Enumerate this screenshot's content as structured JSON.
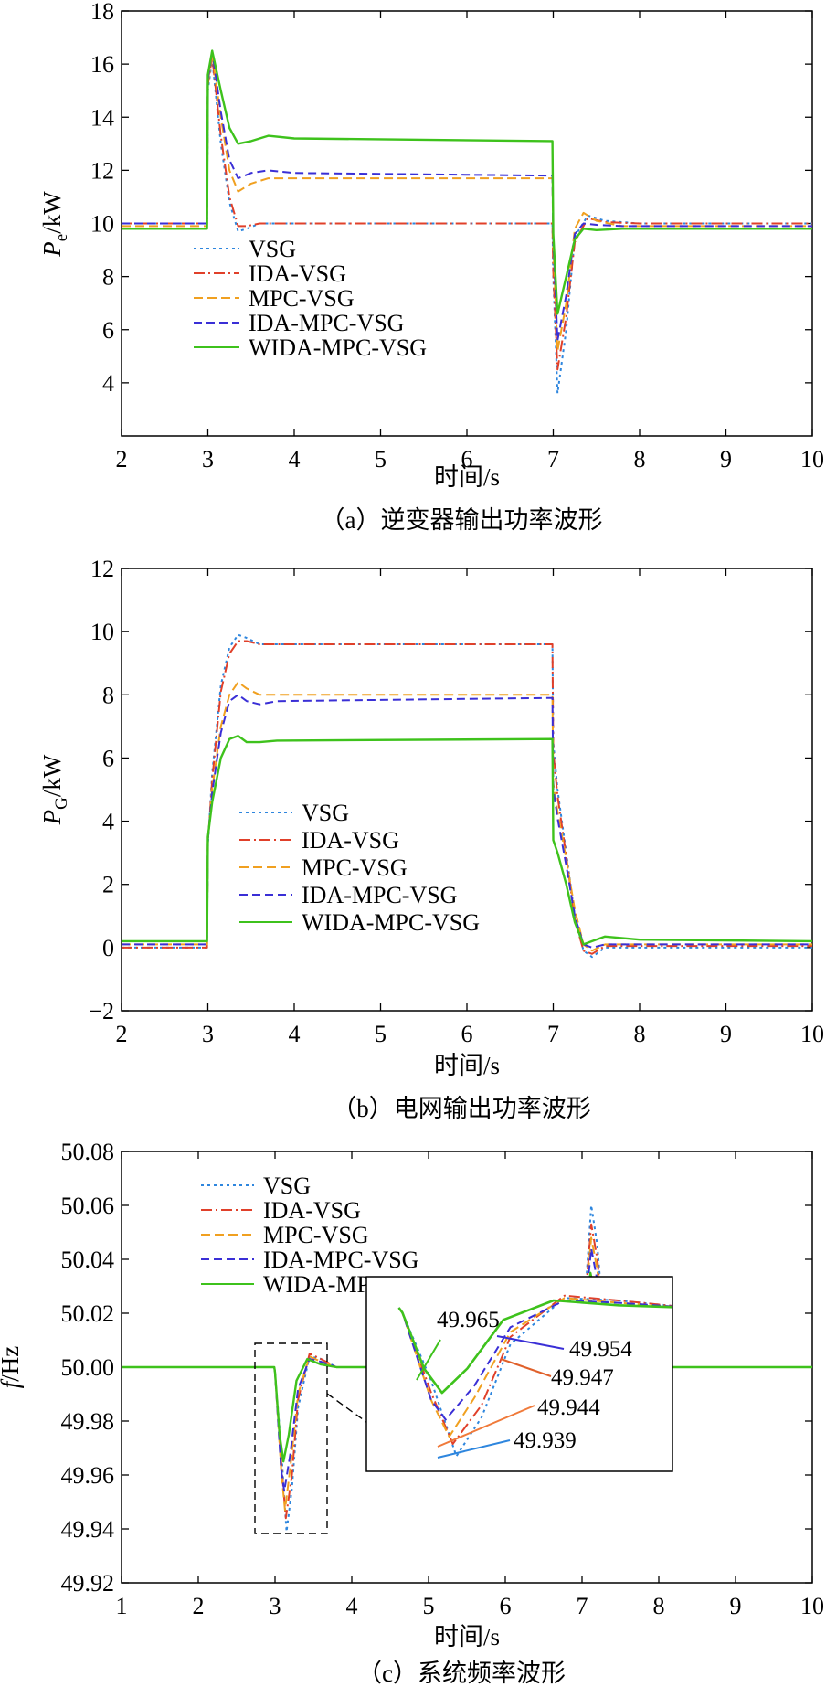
{
  "figure": {
    "time_unit_label": "时间/s",
    "series_colors": {
      "VSG": "#2e86de",
      "IDA-VSG": "#e0402a",
      "MPC-VSG": "#f0a020",
      "IDA-MPC-VSG": "#3a2fd6",
      "WIDA-MPC-VSG": "#3ec21c"
    }
  },
  "chart_data": [
    {
      "id": "a",
      "type": "line",
      "caption": "（a）逆变器输出功率波形",
      "xlabel": "时间/s",
      "ylabel_main": "P",
      "ylabel_sub": "e",
      "ylabel_unit": "/kW",
      "xlim": [
        2,
        10
      ],
      "ylim": [
        2,
        18
      ],
      "xticks": [
        2,
        3,
        4,
        5,
        6,
        7,
        8,
        9,
        10
      ],
      "yticks": [
        4,
        6,
        8,
        10,
        12,
        14,
        16,
        18
      ],
      "ytick_labels": [
        "4",
        "6",
        "8",
        "10",
        "12",
        "14",
        "16",
        "18"
      ],
      "xtick_labels": [
        "2",
        "3",
        "4",
        "5",
        "6",
        "7",
        "8",
        "9",
        "10"
      ],
      "legend": [
        "VSG",
        "IDA-VSG",
        "MPC-VSG",
        "IDA-MPC-VSG",
        "WIDA-MPC-VSG"
      ],
      "series": [
        {
          "name": "VSG",
          "x": [
            2,
            2.99,
            3.0,
            3.05,
            3.15,
            3.25,
            3.35,
            3.45,
            3.6,
            3.8,
            6.99,
            7.0,
            7.05,
            7.15,
            7.25,
            7.4,
            7.6,
            8.0,
            10
          ],
          "y": [
            10.0,
            10.0,
            15.0,
            16.2,
            13.0,
            10.8,
            9.7,
            9.8,
            10.0,
            10.0,
            10.0,
            8.0,
            3.6,
            6.0,
            9.5,
            10.3,
            10.1,
            10.0,
            10.0
          ]
        },
        {
          "name": "IDA-VSG",
          "x": [
            2,
            2.99,
            3.0,
            3.05,
            3.15,
            3.25,
            3.35,
            3.45,
            3.6,
            3.8,
            6.99,
            7.0,
            7.05,
            7.15,
            7.25,
            7.4,
            7.6,
            8.0,
            10
          ],
          "y": [
            10.0,
            10.0,
            15.2,
            16.3,
            13.3,
            11.0,
            9.9,
            9.9,
            10.0,
            10.0,
            10.0,
            8.2,
            4.5,
            6.5,
            9.3,
            10.2,
            10.05,
            10.0,
            10.0
          ]
        },
        {
          "name": "MPC-VSG",
          "x": [
            2,
            2.99,
            3.0,
            3.05,
            3.15,
            3.25,
            3.35,
            3.5,
            3.7,
            4.0,
            6.99,
            7.0,
            7.05,
            7.15,
            7.25,
            7.35,
            7.5,
            7.8,
            10
          ],
          "y": [
            9.9,
            9.9,
            15.3,
            16.4,
            14.0,
            12.0,
            11.2,
            11.5,
            11.7,
            11.7,
            11.7,
            9.2,
            5.2,
            7.0,
            9.8,
            10.4,
            10.1,
            9.9,
            9.9
          ]
        },
        {
          "name": "IDA-MPC-VSG",
          "x": [
            2,
            2.99,
            3.0,
            3.05,
            3.15,
            3.25,
            3.35,
            3.5,
            3.7,
            4.0,
            6.99,
            7.0,
            7.05,
            7.15,
            7.25,
            7.35,
            7.5,
            7.8,
            10
          ],
          "y": [
            10.0,
            10.0,
            15.4,
            16.5,
            14.2,
            12.4,
            11.7,
            11.9,
            12.0,
            11.9,
            11.8,
            9.4,
            5.6,
            7.3,
            9.6,
            10.0,
            9.95,
            9.9,
            9.9
          ]
        },
        {
          "name": "WIDA-MPC-VSG",
          "x": [
            2,
            2.99,
            3.0,
            3.05,
            3.15,
            3.25,
            3.35,
            3.5,
            3.7,
            4.0,
            6.99,
            7.0,
            7.05,
            7.15,
            7.25,
            7.35,
            7.5,
            7.8,
            10
          ],
          "y": [
            9.8,
            9.8,
            15.6,
            16.5,
            15.0,
            13.6,
            13.0,
            13.1,
            13.3,
            13.2,
            13.1,
            9.6,
            6.6,
            8.0,
            9.4,
            9.8,
            9.75,
            9.8,
            9.8
          ]
        }
      ]
    },
    {
      "id": "b",
      "type": "line",
      "caption": "（b）电网输出功率波形",
      "xlabel": "时间/s",
      "ylabel_main": "P",
      "ylabel_sub": "G",
      "ylabel_unit": "/kW",
      "xlim": [
        2,
        10
      ],
      "ylim": [
        -2,
        12
      ],
      "xticks": [
        2,
        3,
        4,
        5,
        6,
        7,
        8,
        9,
        10
      ],
      "yticks": [
        -2,
        0,
        2,
        4,
        6,
        8,
        10,
        12
      ],
      "ytick_labels": [
        "−2",
        "0",
        "2",
        "4",
        "6",
        "8",
        "10",
        "12"
      ],
      "xtick_labels": [
        "2",
        "3",
        "4",
        "5",
        "6",
        "7",
        "8",
        "9",
        "10"
      ],
      "legend": [
        "VSG",
        "IDA-VSG",
        "MPC-VSG",
        "IDA-MPC-VSG",
        "WIDA-MPC-VSG"
      ],
      "series": [
        {
          "name": "VSG",
          "x": [
            2,
            2.99,
            3.0,
            3.05,
            3.15,
            3.25,
            3.35,
            3.45,
            3.6,
            3.8,
            6.99,
            7.0,
            7.05,
            7.15,
            7.25,
            7.35,
            7.45,
            7.6,
            8.0,
            10
          ],
          "y": [
            0.0,
            0.0,
            3.2,
            5.5,
            8.3,
            9.5,
            9.9,
            9.8,
            9.6,
            9.6,
            9.6,
            6.5,
            5.0,
            3.0,
            1.0,
            -0.1,
            -0.3,
            0.0,
            0.0,
            0.0
          ]
        },
        {
          "name": "IDA-VSG",
          "x": [
            2,
            2.99,
            3.0,
            3.05,
            3.15,
            3.25,
            3.35,
            3.45,
            3.6,
            3.8,
            6.99,
            7.0,
            7.05,
            7.15,
            7.25,
            7.35,
            7.45,
            7.6,
            8.0,
            10
          ],
          "y": [
            0.0,
            0.0,
            3.3,
            5.3,
            8.1,
            9.3,
            9.7,
            9.7,
            9.6,
            9.6,
            9.6,
            6.2,
            4.8,
            2.9,
            0.9,
            -0.1,
            -0.2,
            0.05,
            0.05,
            0.05
          ]
        },
        {
          "name": "MPC-VSG",
          "x": [
            2,
            2.99,
            3.0,
            3.05,
            3.15,
            3.25,
            3.35,
            3.45,
            3.6,
            3.8,
            6.99,
            7.0,
            7.05,
            7.15,
            7.25,
            7.35,
            7.45,
            7.6,
            8.0,
            10
          ],
          "y": [
            0.1,
            0.1,
            3.4,
            5.0,
            7.0,
            8.0,
            8.4,
            8.2,
            8.0,
            8.0,
            8.0,
            5.2,
            4.3,
            2.8,
            1.2,
            0.1,
            -0.1,
            0.1,
            0.1,
            0.1
          ]
        },
        {
          "name": "IDA-MPC-VSG",
          "x": [
            2,
            2.99,
            3.0,
            3.05,
            3.15,
            3.25,
            3.35,
            3.45,
            3.6,
            3.8,
            6.99,
            7.0,
            7.05,
            7.15,
            7.25,
            7.35,
            7.45,
            7.6,
            8.0,
            10
          ],
          "y": [
            0.1,
            0.1,
            3.4,
            4.9,
            6.8,
            7.8,
            8.0,
            7.8,
            7.7,
            7.8,
            7.9,
            5.0,
            4.1,
            2.6,
            1.0,
            0.1,
            0.0,
            0.1,
            0.1,
            0.1
          ]
        },
        {
          "name": "WIDA-MPC-VSG",
          "x": [
            2,
            2.99,
            3.0,
            3.05,
            3.15,
            3.25,
            3.35,
            3.45,
            3.6,
            3.8,
            6.99,
            7.0,
            7.05,
            7.15,
            7.25,
            7.35,
            7.45,
            7.6,
            8.0,
            10
          ],
          "y": [
            0.2,
            0.2,
            3.5,
            4.6,
            6.0,
            6.6,
            6.7,
            6.5,
            6.5,
            6.55,
            6.6,
            3.4,
            3.0,
            2.0,
            0.8,
            0.1,
            0.2,
            0.35,
            0.25,
            0.2
          ]
        }
      ]
    },
    {
      "id": "c",
      "type": "line",
      "caption": "（c）系统频率波形",
      "xlabel": "时间/s",
      "ylabel_main": "f",
      "ylabel_sub": "",
      "ylabel_unit": "/Hz",
      "xlim": [
        1,
        10
      ],
      "ylim": [
        49.92,
        50.08
      ],
      "xticks": [
        1,
        2,
        3,
        4,
        5,
        6,
        7,
        8,
        9,
        10
      ],
      "yticks": [
        49.92,
        49.94,
        49.96,
        49.98,
        50.0,
        50.02,
        50.04,
        50.06,
        50.08
      ],
      "ytick_labels": [
        "49.92",
        "49.94",
        "49.96",
        "49.98",
        "50.00",
        "50.02",
        "50.04",
        "50.06",
        "50.08"
      ],
      "xtick_labels": [
        "1",
        "2",
        "3",
        "4",
        "5",
        "6",
        "7",
        "8",
        "9",
        "10"
      ],
      "legend": [
        "VSG",
        "IDA-VSG",
        "MPC-VSG",
        "IDA-MPC-VSG",
        "WIDA-MPC-VSG"
      ],
      "series": [
        {
          "name": "VSG",
          "x": [
            1,
            2.99,
            3.0,
            3.08,
            3.15,
            3.22,
            3.3,
            3.45,
            3.6,
            3.8,
            4.2,
            7.0,
            7.05,
            7.12,
            7.2,
            7.3,
            7.42,
            7.6,
            8.0,
            10
          ],
          "y": [
            50.0,
            50.0,
            49.998,
            49.97,
            49.939,
            49.955,
            49.985,
            50.004,
            50.003,
            50.0,
            50.0,
            50.0,
            50.03,
            50.06,
            50.045,
            50.01,
            49.996,
            50.001,
            50.0,
            50.0
          ]
        },
        {
          "name": "IDA-VSG",
          "x": [
            1,
            2.99,
            3.0,
            3.08,
            3.14,
            3.22,
            3.3,
            3.45,
            3.6,
            3.8,
            4.2,
            7.0,
            7.05,
            7.12,
            7.2,
            7.3,
            7.42,
            7.6,
            8.0,
            10
          ],
          "y": [
            50.0,
            50.0,
            49.998,
            49.965,
            49.944,
            49.96,
            49.988,
            50.005,
            50.003,
            50.0,
            50.0,
            50.0,
            50.028,
            50.053,
            50.04,
            50.008,
            49.997,
            50.001,
            50.0,
            50.0
          ]
        },
        {
          "name": "MPC-VSG",
          "x": [
            1,
            2.99,
            3.0,
            3.08,
            3.13,
            3.2,
            3.3,
            3.45,
            3.6,
            3.8,
            4.2,
            7.0,
            7.05,
            7.12,
            7.2,
            7.3,
            7.42,
            7.6,
            8.0,
            10
          ],
          "y": [
            50.0,
            50.0,
            49.998,
            49.962,
            49.947,
            49.963,
            49.99,
            50.004,
            50.002,
            50.0,
            50.0,
            50.0,
            50.026,
            50.048,
            50.036,
            50.006,
            49.997,
            50.0,
            50.0,
            50.0
          ]
        },
        {
          "name": "IDA-MPC-VSG",
          "x": [
            1,
            2.99,
            3.0,
            3.08,
            3.12,
            3.2,
            3.3,
            3.45,
            3.6,
            3.8,
            4.2,
            7.0,
            7.05,
            7.12,
            7.2,
            7.3,
            7.42,
            7.6,
            8.0,
            10
          ],
          "y": [
            50.0,
            50.0,
            49.998,
            49.962,
            49.954,
            49.968,
            49.992,
            50.003,
            50.002,
            50.0,
            50.0,
            50.0,
            50.024,
            50.044,
            50.032,
            50.005,
            49.998,
            50.0,
            50.0,
            50.0
          ]
        },
        {
          "name": "WIDA-MPC-VSG",
          "x": [
            1,
            2.99,
            3.0,
            3.06,
            3.11,
            3.18,
            3.28,
            3.42,
            3.6,
            3.8,
            4.2,
            7.0,
            7.05,
            7.11,
            7.18,
            7.28,
            7.4,
            7.6,
            8.0,
            10
          ],
          "y": [
            50.0,
            50.0,
            49.998,
            49.975,
            49.965,
            49.975,
            49.995,
            50.003,
            50.001,
            50.0,
            50.0,
            50.0,
            50.02,
            50.035,
            50.025,
            50.004,
            49.998,
            50.0,
            50.0,
            50.0
          ]
        }
      ],
      "annotations": [
        "49.965",
        "49.954",
        "49.947",
        "49.944",
        "49.939"
      ]
    }
  ]
}
